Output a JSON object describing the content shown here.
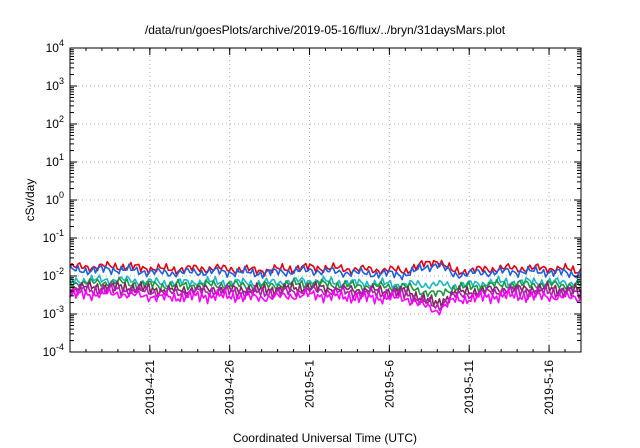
{
  "chart_data": {
    "type": "line",
    "title": "/data/run/goesPlots/archive/2019-05-16/flux/../bryn/31daysMars.plot",
    "xlabel": "Coordinated Universal Time (UTC)",
    "ylabel": "cSv/day",
    "yscale": "log",
    "ylim": [
      0.0001,
      10000
    ],
    "xlim": [
      "2019-04-16",
      "2019-05-18"
    ],
    "grid": true,
    "y_ticks": [
      {
        "base": "10",
        "exp": "-4"
      },
      {
        "base": "10",
        "exp": "-3"
      },
      {
        "base": "10",
        "exp": "-2"
      },
      {
        "base": "10",
        "exp": "-1"
      },
      {
        "base": "10",
        "exp": "0"
      },
      {
        "base": "10",
        "exp": "1"
      },
      {
        "base": "10",
        "exp": "2"
      },
      {
        "base": "10",
        "exp": "3"
      },
      {
        "base": "10",
        "exp": "4"
      }
    ],
    "x_ticks": [
      "2019-4-21",
      "2019-4-26",
      "2019-5-1",
      "2019-5-6",
      "2019-5-11",
      "2019-5-16"
    ],
    "x_dates": [
      "2019-04-16",
      "2019-04-19",
      "2019-04-22",
      "2019-04-25",
      "2019-04-28",
      "2019-05-01",
      "2019-05-04",
      "2019-05-07",
      "2019-05-09",
      "2019-05-10",
      "2019-05-13",
      "2019-05-16",
      "2019-05-18"
    ],
    "series": [
      {
        "color": "#e8000b",
        "values": [
          0.017,
          0.018,
          0.015,
          0.016,
          0.014,
          0.017,
          0.015,
          0.014,
          0.026,
          0.013,
          0.016,
          0.016,
          0.014
        ]
      },
      {
        "color": "#1a5fe6",
        "values": [
          0.014,
          0.015,
          0.012,
          0.013,
          0.012,
          0.014,
          0.012,
          0.011,
          0.021,
          0.011,
          0.013,
          0.013,
          0.011
        ]
      },
      {
        "color": "#16b8c8",
        "values": [
          0.0075,
          0.008,
          0.0065,
          0.007,
          0.0065,
          0.0075,
          0.0065,
          0.006,
          0.006,
          0.0055,
          0.007,
          0.007,
          0.0065
        ]
      },
      {
        "color": "#1a9a3a",
        "values": [
          0.0065,
          0.0068,
          0.0055,
          0.006,
          0.0055,
          0.0065,
          0.0055,
          0.0052,
          0.0032,
          0.0048,
          0.006,
          0.006,
          0.0055
        ]
      },
      {
        "color": "#7a2a5a",
        "values": [
          0.005,
          0.0052,
          0.0042,
          0.0046,
          0.0043,
          0.005,
          0.0043,
          0.004,
          0.0018,
          0.0036,
          0.0046,
          0.0046,
          0.0042
        ]
      },
      {
        "color": "#b01fb0",
        "values": [
          0.0042,
          0.0044,
          0.0036,
          0.004,
          0.0036,
          0.0042,
          0.0036,
          0.0034,
          0.0015,
          0.003,
          0.004,
          0.0038,
          0.0035
        ]
      },
      {
        "color": "#ff00ff",
        "values": [
          0.0032,
          0.0034,
          0.0027,
          0.003,
          0.0027,
          0.0032,
          0.0027,
          0.0026,
          0.0012,
          0.0023,
          0.003,
          0.0029,
          0.0026
        ]
      }
    ]
  }
}
